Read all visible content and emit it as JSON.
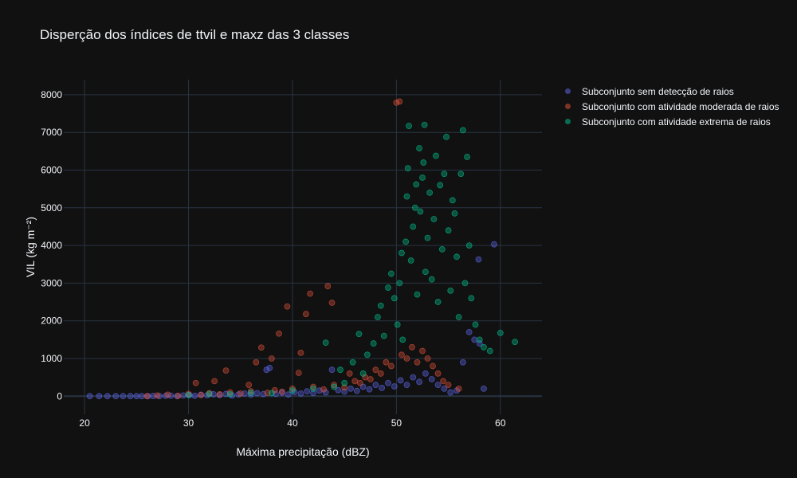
{
  "chart_data": {
    "type": "scatter",
    "title": "Disperção dos índices de ttvil e maxz das 3 classes",
    "xlabel": "Máxima precipitação (dBZ)",
    "ylabel": "VIL (kg m⁻²)",
    "xlim": [
      18,
      64
    ],
    "ylim": [
      -480,
      8400
    ],
    "x_ticks": [
      20,
      30,
      40,
      50,
      60
    ],
    "y_ticks": [
      0,
      1000,
      2000,
      3000,
      4000,
      5000,
      6000,
      7000,
      8000
    ],
    "grid": true,
    "legend_position": "top-right, outside plot",
    "colors": {
      "background": "#111111",
      "grid": "#283442",
      "text": "#f2f5fa"
    },
    "series": [
      {
        "name": "Subconjunto sem detecção de raios",
        "color": "#636efa",
        "points": [
          [
            20.5,
            0
          ],
          [
            21.4,
            0
          ],
          [
            22.2,
            0
          ],
          [
            23.0,
            0
          ],
          [
            23.7,
            0
          ],
          [
            24.4,
            0
          ],
          [
            25.0,
            0
          ],
          [
            25.5,
            0
          ],
          [
            26.1,
            0
          ],
          [
            26.6,
            5
          ],
          [
            27.2,
            0
          ],
          [
            27.8,
            10
          ],
          [
            28.3,
            15
          ],
          [
            28.9,
            0
          ],
          [
            29.5,
            20
          ],
          [
            30.1,
            30
          ],
          [
            30.6,
            10
          ],
          [
            31.2,
            40
          ],
          [
            31.8,
            25
          ],
          [
            32.4,
            50
          ],
          [
            33.0,
            30
          ],
          [
            33.6,
            60
          ],
          [
            34.2,
            20
          ],
          [
            34.8,
            45
          ],
          [
            35.4,
            70
          ],
          [
            36.0,
            40
          ],
          [
            36.6,
            80
          ],
          [
            37.2,
            55
          ],
          [
            37.5,
            700
          ],
          [
            37.8,
            750
          ],
          [
            38.4,
            60
          ],
          [
            39.0,
            90
          ],
          [
            39.6,
            45
          ],
          [
            40.2,
            110
          ],
          [
            40.8,
            70
          ],
          [
            41.4,
            130
          ],
          [
            42.0,
            85
          ],
          [
            42.6,
            150
          ],
          [
            43.2,
            100
          ],
          [
            43.8,
            700
          ],
          [
            44.4,
            160
          ],
          [
            45.0,
            120
          ],
          [
            45.6,
            200
          ],
          [
            46.2,
            140
          ],
          [
            46.8,
            250
          ],
          [
            47.4,
            180
          ],
          [
            48.0,
            300
          ],
          [
            48.6,
            220
          ],
          [
            49.2,
            350
          ],
          [
            49.8,
            260
          ],
          [
            50.4,
            420
          ],
          [
            51.0,
            300
          ],
          [
            51.6,
            500
          ],
          [
            52.2,
            380
          ],
          [
            52.8,
            600
          ],
          [
            53.4,
            450
          ],
          [
            54.0,
            300
          ],
          [
            54.6,
            200
          ],
          [
            55.2,
            100
          ],
          [
            55.8,
            150
          ],
          [
            56.4,
            900
          ],
          [
            57.0,
            1700
          ],
          [
            57.5,
            1500
          ],
          [
            57.9,
            3630
          ],
          [
            58.4,
            200
          ],
          [
            58.0,
            1400
          ],
          [
            59.4,
            4030
          ]
        ]
      },
      {
        "name": "Subconjunto com atividade moderada de raios",
        "color": "#ef553b",
        "points": [
          [
            26.0,
            0
          ],
          [
            27.0,
            20
          ],
          [
            28.0,
            40
          ],
          [
            29.0,
            10
          ],
          [
            30.0,
            60
          ],
          [
            30.7,
            350
          ],
          [
            31.2,
            30
          ],
          [
            32.0,
            80
          ],
          [
            32.5,
            400
          ],
          [
            33.0,
            50
          ],
          [
            33.6,
            680
          ],
          [
            34.0,
            100
          ],
          [
            35.0,
            70
          ],
          [
            35.8,
            300
          ],
          [
            36.0,
            130
          ],
          [
            36.5,
            900
          ],
          [
            37.0,
            1290
          ],
          [
            37.6,
            90
          ],
          [
            38.0,
            1000
          ],
          [
            38.3,
            160
          ],
          [
            38.7,
            1660
          ],
          [
            39.0,
            120
          ],
          [
            39.5,
            2380
          ],
          [
            40.0,
            200
          ],
          [
            40.6,
            620
          ],
          [
            40.8,
            1150
          ],
          [
            41.3,
            2180
          ],
          [
            41.7,
            2720
          ],
          [
            42.0,
            250
          ],
          [
            43.0,
            180
          ],
          [
            43.4,
            2920
          ],
          [
            43.8,
            2480
          ],
          [
            44.0,
            300
          ],
          [
            45.0,
            230
          ],
          [
            45.5,
            600
          ],
          [
            46.0,
            400
          ],
          [
            46.5,
            350
          ],
          [
            47.0,
            500
          ],
          [
            47.5,
            450
          ],
          [
            48.0,
            700
          ],
          [
            48.5,
            600
          ],
          [
            49.0,
            900
          ],
          [
            49.5,
            800
          ],
          [
            50.0,
            7790
          ],
          [
            50.3,
            7820
          ],
          [
            50.5,
            1100
          ],
          [
            51.0,
            1000
          ],
          [
            51.5,
            1300
          ],
          [
            52.0,
            900
          ],
          [
            52.5,
            1200
          ],
          [
            53.0,
            1000
          ],
          [
            53.5,
            800
          ],
          [
            54.0,
            600
          ],
          [
            54.5,
            400
          ],
          [
            55.0,
            300
          ],
          [
            56.0,
            200
          ]
        ]
      },
      {
        "name": "Subconjunto com atividade extrema de raios",
        "color": "#00cc96",
        "points": [
          [
            30.0,
            30
          ],
          [
            32.0,
            60
          ],
          [
            34.0,
            50
          ],
          [
            36.0,
            90
          ],
          [
            38.0,
            80
          ],
          [
            40.0,
            150
          ],
          [
            42.0,
            200
          ],
          [
            43.2,
            1420
          ],
          [
            44.0,
            250
          ],
          [
            44.6,
            700
          ],
          [
            45.0,
            350
          ],
          [
            45.8,
            900
          ],
          [
            46.4,
            1650
          ],
          [
            46.8,
            600
          ],
          [
            47.2,
            1100
          ],
          [
            47.8,
            1400
          ],
          [
            48.2,
            2100
          ],
          [
            48.5,
            2400
          ],
          [
            48.8,
            1600
          ],
          [
            49.2,
            2880
          ],
          [
            49.5,
            3250
          ],
          [
            49.8,
            2600
          ],
          [
            50.1,
            1900
          ],
          [
            50.3,
            3000
          ],
          [
            50.5,
            3800
          ],
          [
            50.6,
            1500
          ],
          [
            50.9,
            4100
          ],
          [
            51.0,
            5300
          ],
          [
            51.1,
            6050
          ],
          [
            51.2,
            7170
          ],
          [
            51.4,
            3600
          ],
          [
            51.6,
            4500
          ],
          [
            51.8,
            5000
          ],
          [
            51.9,
            5620
          ],
          [
            52.0,
            2700
          ],
          [
            52.2,
            6580
          ],
          [
            52.3,
            4900
          ],
          [
            52.5,
            5800
          ],
          [
            52.6,
            6200
          ],
          [
            52.7,
            7200
          ],
          [
            52.8,
            3300
          ],
          [
            53.0,
            4200
          ],
          [
            53.2,
            5400
          ],
          [
            53.4,
            3100
          ],
          [
            53.6,
            4700
          ],
          [
            53.8,
            6380
          ],
          [
            54.0,
            2500
          ],
          [
            54.2,
            5600
          ],
          [
            54.4,
            3900
          ],
          [
            54.6,
            5900
          ],
          [
            54.8,
            6880
          ],
          [
            55.0,
            4400
          ],
          [
            55.2,
            2800
          ],
          [
            55.4,
            5200
          ],
          [
            55.6,
            4850
          ],
          [
            55.8,
            3700
          ],
          [
            56.0,
            2100
          ],
          [
            56.2,
            5900
          ],
          [
            56.4,
            7060
          ],
          [
            56.6,
            3000
          ],
          [
            56.8,
            6350
          ],
          [
            57.0,
            4000
          ],
          [
            57.2,
            2600
          ],
          [
            57.6,
            1900
          ],
          [
            58.0,
            1500
          ],
          [
            58.4,
            1300
          ],
          [
            59.0,
            1200
          ],
          [
            60.0,
            1680
          ],
          [
            61.4,
            1440
          ]
        ]
      }
    ]
  }
}
